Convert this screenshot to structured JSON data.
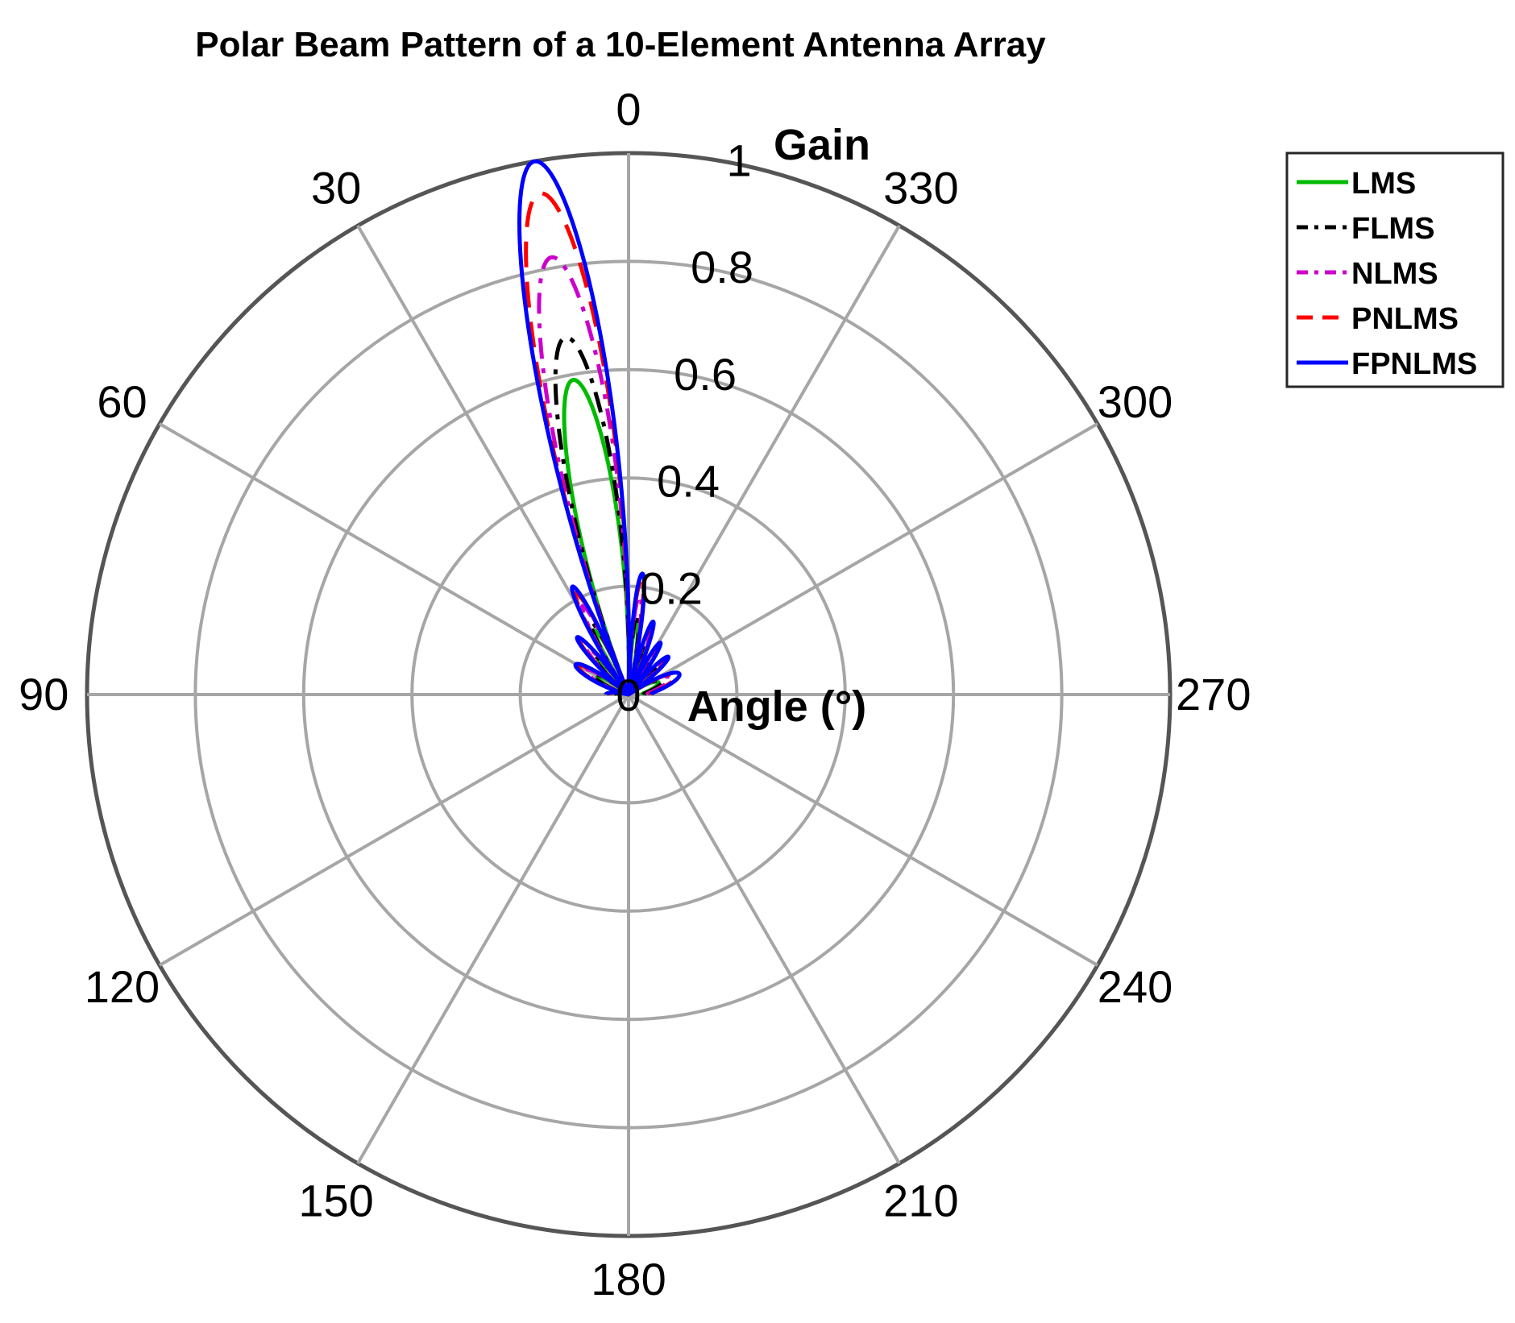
{
  "chart_data": {
    "type": "polar-line",
    "title": "Polar Beam Pattern of a 10-Element Antenna Array",
    "theta_label": "Angle (°)",
    "r_label": "Gain",
    "theta_direction": "counterclockwise",
    "theta_zero_location": "top",
    "theta_ticks": [
      0,
      30,
      60,
      90,
      120,
      150,
      180,
      210,
      240,
      270,
      300,
      330
    ],
    "theta_tick_labels": [
      "0",
      "30",
      "60",
      "90",
      "120",
      "150",
      "180",
      "210",
      "240",
      "270",
      "300",
      "330"
    ],
    "r_ticks": [
      0,
      0.2,
      0.4,
      0.6,
      0.8,
      1
    ],
    "r_tick_labels": [
      "0",
      "0.2",
      "0.4",
      "0.6",
      "0.8",
      "1"
    ],
    "rlim": [
      0,
      1
    ],
    "grid": true,
    "legend_position": "top-right",
    "beam_direction_deg": 10,
    "array_elements": 10,
    "series": [
      {
        "name": "LMS",
        "color": "#00bb00",
        "dash": "solid",
        "peak": 0.59
      },
      {
        "name": "FLMS",
        "color": "#000000",
        "dash": "dash-dot",
        "peak": 0.67
      },
      {
        "name": "NLMS",
        "color": "#cc00cc",
        "dash": "dash-dot",
        "peak": 0.82
      },
      {
        "name": "PNLMS",
        "color": "#ff0000",
        "dash": "dashed",
        "peak": 0.94
      },
      {
        "name": "FPNLMS",
        "color": "#0000ff",
        "dash": "solid",
        "peak": 1.0
      }
    ]
  }
}
